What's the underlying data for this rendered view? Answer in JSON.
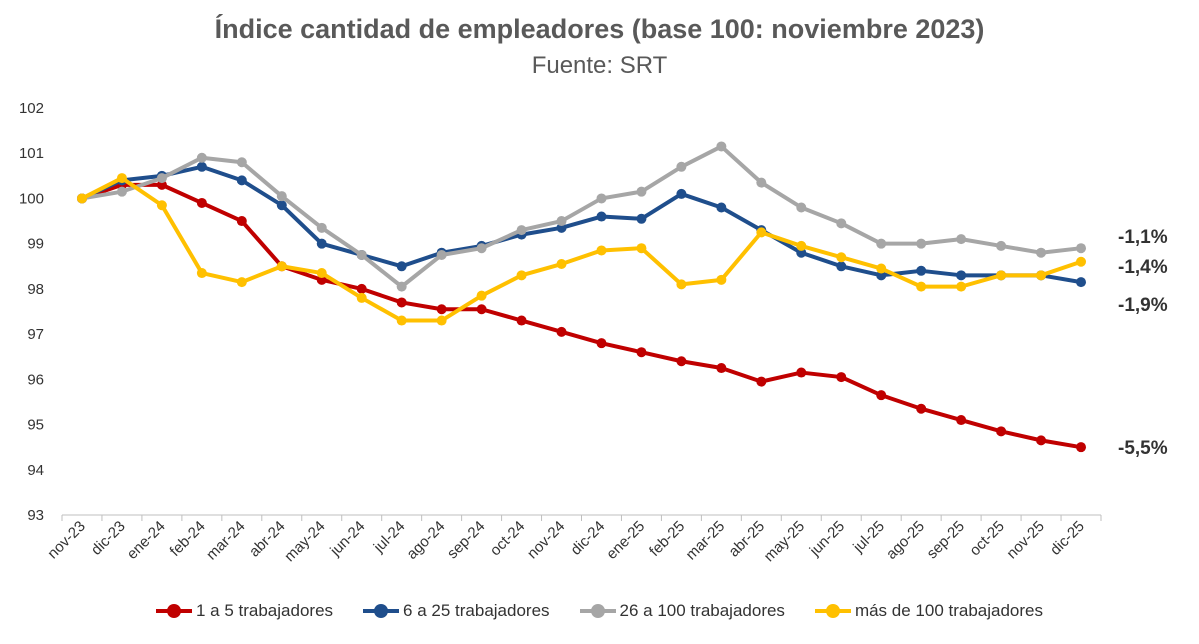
{
  "chart_data": {
    "type": "line",
    "title": "Índice cantidad de empleadores (base 100: noviembre 2023)",
    "subtitle": "Fuente: SRT",
    "ylim": [
      93,
      102
    ],
    "yticks": [
      93,
      94,
      95,
      96,
      97,
      98,
      99,
      100,
      101,
      102
    ],
    "grid": false,
    "legend_position": "bottom",
    "categories": [
      "nov-23",
      "dic-23",
      "ene-24",
      "feb-24",
      "mar-24",
      "abr-24",
      "may-24",
      "jun-24",
      "jul-24",
      "ago-24",
      "sep-24",
      "oct-24",
      "nov-24",
      "dic-24",
      "ene-25",
      "feb-25",
      "mar-25",
      "abr-25",
      "may-25",
      "jun-25",
      "jul-25",
      "ago-25",
      "sep-25",
      "oct-25",
      "nov-25",
      "dic-25"
    ],
    "series": [
      {
        "name": "1 a 5 trabajadores",
        "color": "#c00000",
        "values": [
          100,
          100.3,
          100.3,
          99.9,
          99.5,
          98.5,
          98.2,
          98.0,
          97.7,
          97.55,
          97.55,
          97.3,
          97.05,
          96.8,
          96.6,
          96.4,
          96.25,
          95.95,
          96.15,
          96.05,
          95.65,
          95.35,
          95.1,
          94.85,
          94.65,
          94.5
        ],
        "end_label": "-5,5%"
      },
      {
        "name": "6 a 25 trabajadores",
        "color": "#1f4e8c",
        "values": [
          100,
          100.4,
          100.5,
          100.7,
          100.4,
          99.85,
          99.0,
          98.75,
          98.5,
          98.8,
          98.95,
          99.2,
          99.35,
          99.6,
          99.55,
          100.1,
          99.8,
          99.3,
          98.8,
          98.5,
          98.3,
          98.4,
          98.3,
          98.3,
          98.3,
          98.15
        ],
        "end_label": "-1,9%"
      },
      {
        "name": "26 a 100 trabajadores",
        "color": "#a6a6a6",
        "values": [
          100,
          100.15,
          100.45,
          100.9,
          100.8,
          100.05,
          99.35,
          98.75,
          98.05,
          98.75,
          98.9,
          99.3,
          99.5,
          100.0,
          100.15,
          100.7,
          101.15,
          100.35,
          99.8,
          99.45,
          99.0,
          99.0,
          99.1,
          98.95,
          98.8,
          98.9
        ],
        "end_label": "-1,1%"
      },
      {
        "name": "más de 100 trabajadores",
        "color": "#ffc000",
        "values": [
          100,
          100.45,
          99.85,
          98.35,
          98.15,
          98.5,
          98.35,
          97.8,
          97.3,
          97.3,
          97.85,
          98.3,
          98.55,
          98.85,
          98.9,
          98.1,
          98.2,
          99.25,
          98.95,
          98.7,
          98.45,
          98.05,
          98.05,
          98.3,
          98.3,
          98.6
        ],
        "end_label": "-1,4%"
      }
    ]
  }
}
